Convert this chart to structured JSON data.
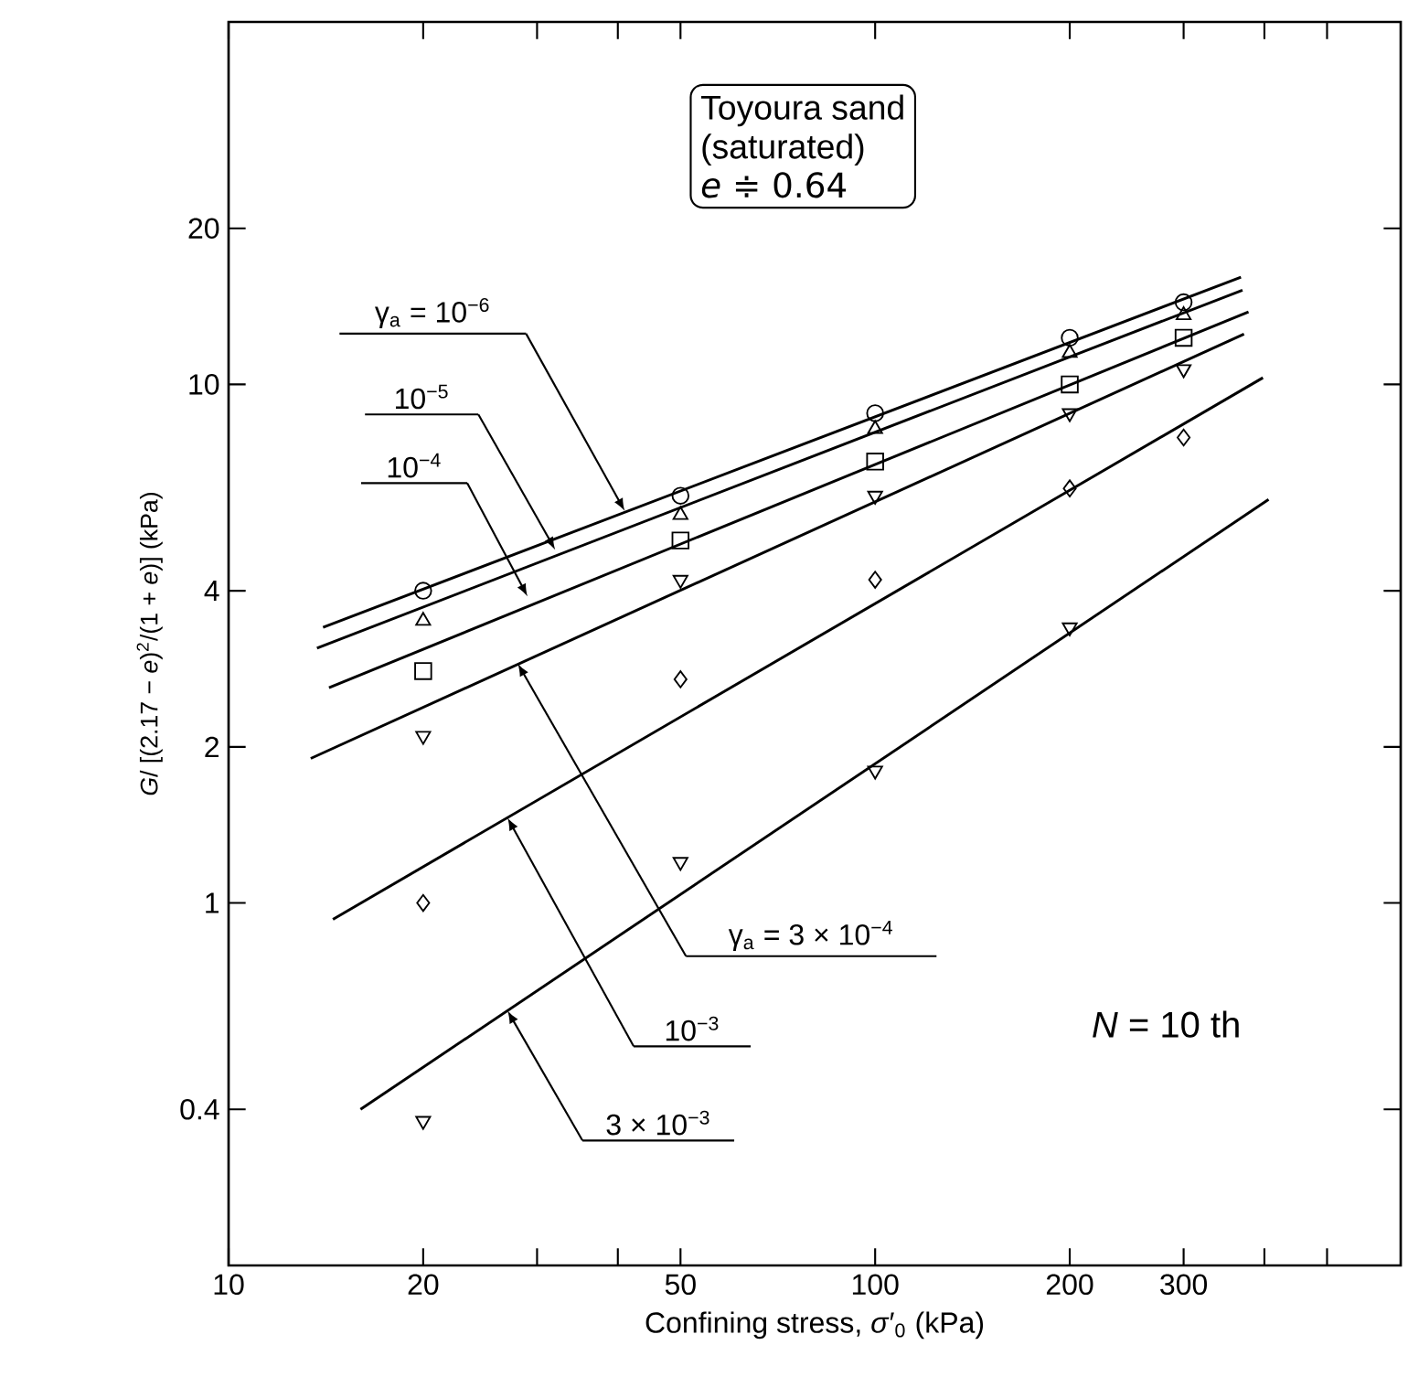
{
  "chart_data": {
    "type": "scatter",
    "xlabel": "Confining stress, *σ*′$_{0}$ (kPa)",
    "ylabel": "*G*/ [(2.17 − *e*)$^{2}$/(1 + *e*)] (kPa)",
    "log": "xy",
    "xlim": [
      10,
      650
    ],
    "ylim": [
      0.2,
      50
    ],
    "xticks": [
      10,
      20,
      {
        "value": 30,
        "label": null
      },
      {
        "value": 40,
        "label": null
      },
      50,
      100,
      200,
      300,
      {
        "value": 400,
        "label": null
      },
      {
        "value": 500,
        "label": null
      }
    ],
    "yticks": [
      0.4,
      1,
      2,
      4,
      10,
      20
    ],
    "grid": false,
    "series": [
      {
        "marker": "circle",
        "color": "#000000",
        "x": [
          20,
          50,
          100,
          200,
          300
        ],
        "values": [
          4.0,
          6.1,
          8.8,
          12.3,
          14.4
        ]
      },
      {
        "marker": "triangle",
        "color": "#000000",
        "x": [
          20,
          50,
          100,
          200,
          300
        ],
        "values": [
          3.5,
          5.6,
          8.2,
          11.5,
          13.6
        ]
      },
      {
        "marker": "square",
        "color": "#000000",
        "x": [
          20,
          50,
          100,
          200,
          300
        ],
        "values": [
          2.8,
          5.0,
          7.1,
          10.0,
          12.3
        ]
      },
      {
        "marker": "triangle-down",
        "color": "#000000",
        "x": [
          20,
          50,
          100,
          200,
          300
        ],
        "values": [
          2.1,
          4.2,
          6.1,
          8.8,
          10.7
        ]
      },
      {
        "marker": "diamond",
        "color": "#000000",
        "x": [
          20,
          50,
          100,
          200,
          300
        ],
        "values": [
          1.0,
          2.7,
          4.2,
          6.3,
          7.9
        ]
      },
      {
        "marker": "triangle-down",
        "color": "#000000",
        "x": [
          20,
          50,
          100,
          200
        ],
        "values": [
          0.38,
          1.2,
          1.8,
          3.4
        ]
      },
      {
        "type": "line",
        "marker": "none",
        "color": "#000000",
        "x": [
          14,
          368
        ],
        "values": [
          3.4,
          16.1
        ]
      },
      {
        "type": "line",
        "marker": "none",
        "color": "#000000",
        "x": [
          13.7,
          370
        ],
        "values": [
          3.1,
          15.2
        ]
      },
      {
        "type": "line",
        "marker": "none",
        "color": "#000000",
        "x": [
          14.3,
          378
        ],
        "values": [
          2.6,
          13.8
        ]
      },
      {
        "type": "line",
        "marker": "none",
        "color": "#000000",
        "x": [
          13.4,
          372
        ],
        "values": [
          1.9,
          12.5
        ]
      },
      {
        "type": "line",
        "marker": "none",
        "color": "#000000",
        "x": [
          14.5,
          398
        ],
        "values": [
          0.93,
          10.3
        ]
      },
      {
        "type": "line",
        "marker": "none",
        "color": "#000000",
        "x": [
          16,
          406
        ],
        "values": [
          0.4,
          6.0
        ]
      }
    ],
    "annotations": [
      {
        "text": "γ$_{a}$ = 10$^{−6}$",
        "x": 41,
        "y": 5.7
      },
      {
        "text": "10$^{−5}$",
        "x": 32,
        "y": 4.8
      },
      {
        "text": "10$^{−4}$",
        "x": 29,
        "y": 3.9
      },
      "γ$_{a}$ = 3 × 10$^{−4}$",
      {
        "text": "10$^{−3}$",
        "x": 27,
        "y": 1.46
      },
      {
        "text": "3 × 10$^{−3}$",
        "x": 27,
        "y": 0.62
      },
      "Toyoura sand",
      "(saturated)",
      "*e* ≑ 0.64",
      "*N* = 10 th"
    ]
  }
}
